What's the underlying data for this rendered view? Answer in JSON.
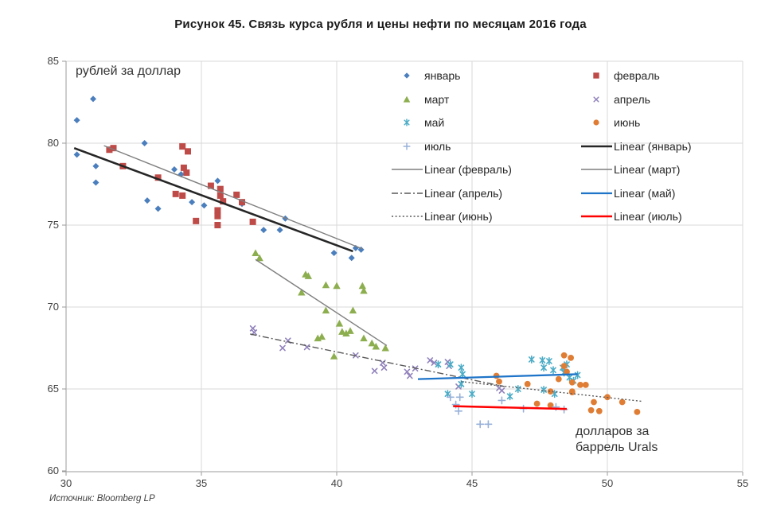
{
  "title": "Рисунок 45. Связь курса рубля и цены нефти по месяцам 2016 года",
  "source": "Источник: Bloomberg LP",
  "colors": {
    "january": "#4A7EBD",
    "february": "#BE4B48",
    "march": "#8DAE4F",
    "april": "#9182BC",
    "may": "#4BACC6",
    "june": "#E07D35",
    "july": "#98B1D9",
    "trend_january": "#262626",
    "trend_gray": "#7F7F7F",
    "trend_dark_gray": "#595959",
    "trend_may": "#1E74C8",
    "trend_july": "#FF0000",
    "grid": "#D9D9D9",
    "axis": "#9B9B9B"
  },
  "legend": {
    "entries": [
      {
        "label": "январь",
        "type": "marker",
        "marker": "diamond",
        "color": "#4A7EBD"
      },
      {
        "label": "февраль",
        "type": "marker",
        "marker": "square",
        "color": "#BE4B48"
      },
      {
        "label": "март",
        "type": "marker",
        "marker": "triangle",
        "color": "#8DAE4F"
      },
      {
        "label": "апрель",
        "type": "marker",
        "marker": "x",
        "color": "#9182BC"
      },
      {
        "label": "май",
        "type": "marker",
        "marker": "star",
        "color": "#4BACC6"
      },
      {
        "label": "июнь",
        "type": "marker",
        "marker": "circle",
        "color": "#E07D35"
      },
      {
        "label": "июль",
        "type": "marker",
        "marker": "plus",
        "color": "#98B1D9"
      },
      {
        "label": "Linear (январь)",
        "type": "line",
        "line_style": "solid",
        "color": "#262626",
        "width": 2.6
      },
      {
        "label": "Linear (февраль)",
        "type": "line",
        "line_style": "solid",
        "color": "#7F7F7F",
        "width": 1.4
      },
      {
        "label": "Linear (март)",
        "type": "line",
        "line_style": "solid",
        "color": "#7F7F7F",
        "width": 1.4
      },
      {
        "label": "Linear (апрель)",
        "type": "line",
        "line_style": "dash-dot",
        "color": "#595959",
        "width": 1.4
      },
      {
        "label": "Linear (май)",
        "type": "line",
        "line_style": "solid",
        "color": "#1E74C8",
        "width": 2.3
      },
      {
        "label": "Linear (июнь)",
        "type": "line",
        "line_style": "dotted",
        "color": "#595959",
        "width": 1.4
      },
      {
        "label": "Linear (июль)",
        "type": "line",
        "line_style": "solid",
        "color": "#FF0000",
        "width": 2.6
      }
    ]
  },
  "chart_data": {
    "type": "scatter",
    "title": "Рисунок 45. Связь курса рубля и цены нефти по месяцам 2016 года",
    "xlabel": "долларов за баррель Urals",
    "ylabel": "рублей за доллар",
    "xlim": [
      30,
      55
    ],
    "ylim": [
      60,
      85
    ],
    "x_ticks": [
      30,
      35,
      40,
      45,
      50,
      55
    ],
    "y_ticks": [
      60,
      65,
      70,
      75,
      80,
      85
    ],
    "grid": true,
    "legend_position": "top-right-inside",
    "series": [
      {
        "id": "january",
        "name": "январь",
        "marker": "diamond",
        "color": "#4A7EBD",
        "points": [
          [
            30.4,
            81.4
          ],
          [
            31.0,
            82.7
          ],
          [
            30.4,
            79.3
          ],
          [
            31.1,
            78.6
          ],
          [
            31.1,
            77.6
          ],
          [
            32.9,
            80.0
          ],
          [
            33.0,
            76.5
          ],
          [
            33.4,
            76.0
          ],
          [
            34.0,
            78.4
          ],
          [
            34.25,
            78.1
          ],
          [
            34.65,
            76.4
          ],
          [
            35.1,
            76.2
          ],
          [
            35.6,
            77.7
          ],
          [
            36.5,
            76.3
          ],
          [
            37.3,
            74.7
          ],
          [
            37.9,
            74.7
          ],
          [
            38.1,
            75.4
          ],
          [
            39.9,
            73.3
          ],
          [
            40.55,
            73.0
          ],
          [
            40.7,
            73.6
          ],
          [
            40.9,
            73.5
          ]
        ]
      },
      {
        "id": "february",
        "name": "февраль",
        "marker": "square",
        "color": "#BE4B48",
        "points": [
          [
            31.6,
            79.6
          ],
          [
            31.75,
            79.7
          ],
          [
            32.1,
            78.6
          ],
          [
            33.4,
            77.9
          ],
          [
            34.3,
            79.8
          ],
          [
            34.5,
            79.5
          ],
          [
            34.35,
            78.5
          ],
          [
            34.45,
            78.2
          ],
          [
            34.05,
            76.9
          ],
          [
            34.3,
            76.8
          ],
          [
            35.35,
            77.4
          ],
          [
            35.7,
            77.2
          ],
          [
            35.7,
            76.8
          ],
          [
            35.8,
            76.45
          ],
          [
            36.3,
            76.85
          ],
          [
            36.5,
            76.4
          ],
          [
            35.6,
            75.9
          ],
          [
            35.6,
            75.55
          ],
          [
            34.8,
            75.25
          ],
          [
            35.6,
            75.0
          ],
          [
            36.9,
            75.2
          ]
        ]
      },
      {
        "id": "march",
        "name": "март",
        "marker": "triangle",
        "color": "#8DAE4F",
        "points": [
          [
            37.0,
            73.3
          ],
          [
            37.15,
            73.0
          ],
          [
            38.85,
            72.0
          ],
          [
            38.95,
            71.9
          ],
          [
            39.6,
            71.35
          ],
          [
            40.0,
            71.3
          ],
          [
            40.95,
            71.3
          ],
          [
            41.0,
            71.0
          ],
          [
            38.7,
            70.9
          ],
          [
            39.6,
            69.8
          ],
          [
            40.6,
            69.8
          ],
          [
            40.1,
            69.0
          ],
          [
            40.2,
            68.5
          ],
          [
            40.35,
            68.4
          ],
          [
            40.5,
            68.55
          ],
          [
            39.3,
            68.1
          ],
          [
            39.45,
            68.2
          ],
          [
            41.0,
            68.1
          ],
          [
            41.3,
            67.8
          ],
          [
            41.45,
            67.6
          ],
          [
            41.8,
            67.5
          ],
          [
            39.9,
            67.0
          ]
        ]
      },
      {
        "id": "april",
        "name": "апрель",
        "marker": "x",
        "color": "#9182BC",
        "points": [
          [
            36.9,
            68.7
          ],
          [
            36.95,
            68.45
          ],
          [
            38.0,
            67.5
          ],
          [
            38.2,
            67.95
          ],
          [
            38.9,
            67.55
          ],
          [
            40.7,
            67.05
          ],
          [
            41.4,
            66.1
          ],
          [
            41.7,
            66.6
          ],
          [
            41.75,
            66.3
          ],
          [
            42.6,
            66.05
          ],
          [
            42.7,
            65.8
          ],
          [
            42.9,
            66.25
          ],
          [
            43.45,
            66.75
          ],
          [
            43.6,
            66.6
          ],
          [
            44.1,
            66.65
          ],
          [
            44.15,
            66.4
          ],
          [
            44.5,
            65.15
          ],
          [
            44.6,
            65.3
          ],
          [
            46.0,
            65.05
          ],
          [
            46.1,
            64.9
          ]
        ]
      },
      {
        "id": "may",
        "name": "май",
        "marker": "star",
        "color": "#4BACC6",
        "points": [
          [
            43.75,
            66.5
          ],
          [
            44.2,
            66.5
          ],
          [
            44.6,
            66.3
          ],
          [
            44.65,
            65.9
          ],
          [
            44.6,
            65.3
          ],
          [
            44.1,
            64.7
          ],
          [
            45.0,
            64.7
          ],
          [
            46.4,
            64.55
          ],
          [
            46.7,
            65.0
          ],
          [
            47.2,
            66.8
          ],
          [
            47.6,
            66.75
          ],
          [
            47.85,
            66.7
          ],
          [
            47.65,
            66.3
          ],
          [
            48.0,
            66.15
          ],
          [
            48.35,
            66.3
          ],
          [
            48.4,
            66.0
          ],
          [
            48.9,
            65.85
          ],
          [
            47.65,
            64.95
          ],
          [
            48.05,
            64.7
          ],
          [
            48.5,
            66.5
          ],
          [
            48.6,
            65.7
          ],
          [
            48.75,
            65.5
          ]
        ]
      },
      {
        "id": "june",
        "name": "июнь",
        "marker": "circle",
        "color": "#E07D35",
        "points": [
          [
            45.9,
            65.8
          ],
          [
            46.0,
            65.45
          ],
          [
            47.05,
            65.3
          ],
          [
            47.4,
            64.1
          ],
          [
            47.9,
            64.0
          ],
          [
            48.4,
            67.05
          ],
          [
            48.65,
            66.9
          ],
          [
            48.4,
            66.4
          ],
          [
            48.5,
            66.05
          ],
          [
            47.9,
            64.85
          ],
          [
            48.7,
            64.85
          ],
          [
            48.2,
            65.6
          ],
          [
            48.7,
            65.4
          ],
          [
            49.0,
            65.25
          ],
          [
            49.2,
            65.25
          ],
          [
            48.7,
            64.8
          ],
          [
            49.5,
            64.2
          ],
          [
            49.4,
            63.7
          ],
          [
            49.7,
            63.65
          ],
          [
            50.0,
            64.5
          ],
          [
            50.55,
            64.2
          ],
          [
            51.1,
            63.6
          ]
        ]
      },
      {
        "id": "july",
        "name": "июль",
        "marker": "plus",
        "color": "#98B1D9",
        "points": [
          [
            44.2,
            64.5
          ],
          [
            44.4,
            64.05
          ],
          [
            44.55,
            64.5
          ],
          [
            44.5,
            63.65
          ],
          [
            45.3,
            62.85
          ],
          [
            45.6,
            62.85
          ],
          [
            46.1,
            64.3
          ],
          [
            46.9,
            63.8
          ],
          [
            48.1,
            63.9
          ],
          [
            48.4,
            63.75
          ]
        ]
      }
    ],
    "trendlines": [
      {
        "id": "january",
        "name": "Linear (январь)",
        "style": "solid",
        "color": "#262626",
        "width": 2.6,
        "from": [
          30.3,
          79.7
        ],
        "to": [
          40.6,
          73.4
        ]
      },
      {
        "id": "february",
        "name": "Linear (февраль)",
        "style": "solid",
        "color": "#7F7F7F",
        "width": 1.4,
        "from": [
          31.4,
          79.85
        ],
        "to": [
          40.95,
          73.55
        ]
      },
      {
        "id": "march",
        "name": "Linear (март)",
        "style": "solid",
        "color": "#7F7F7F",
        "width": 1.4,
        "from": [
          37.0,
          72.9
        ],
        "to": [
          41.85,
          67.65
        ]
      },
      {
        "id": "april",
        "name": "Linear (апрель)",
        "style": "dash-dot",
        "color": "#595959",
        "width": 1.4,
        "from": [
          36.8,
          68.35
        ],
        "to": [
          46.2,
          65.15
        ]
      },
      {
        "id": "may",
        "name": "Linear (май)",
        "style": "solid",
        "color": "#1E74C8",
        "width": 2.3,
        "from": [
          43.0,
          65.6
        ],
        "to": [
          48.9,
          65.9
        ]
      },
      {
        "id": "june",
        "name": "Linear (июнь)",
        "style": "dotted",
        "color": "#595959",
        "width": 1.4,
        "from": [
          44.6,
          65.45
        ],
        "to": [
          51.25,
          64.25
        ]
      },
      {
        "id": "july",
        "name": "Linear (июль)",
        "style": "solid",
        "color": "#FF0000",
        "width": 2.6,
        "from": [
          44.3,
          63.95
        ],
        "to": [
          48.5,
          63.78
        ]
      }
    ]
  }
}
